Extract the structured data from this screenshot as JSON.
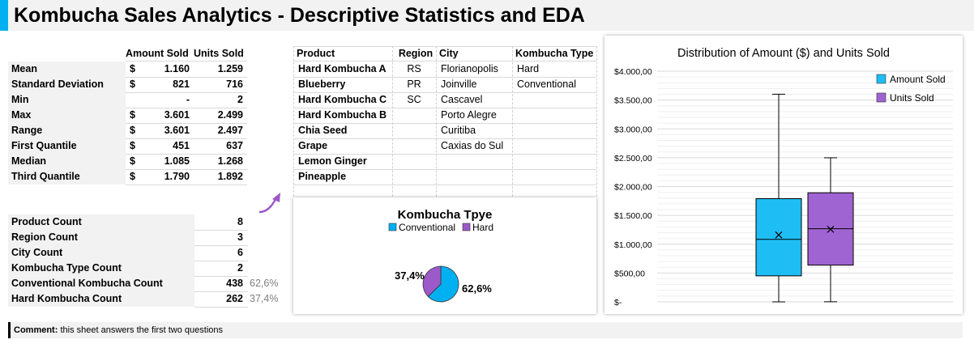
{
  "title": "Kombucha Sales Analytics - Descriptive Statistics and EDA",
  "stats_table": {
    "headers": [
      "Amount Sold",
      "Units Sold"
    ],
    "rows": [
      {
        "label": "Mean",
        "currency": "$",
        "amount": "1.160",
        "units": "1.259"
      },
      {
        "label": "Standard Deviation",
        "currency": "$",
        "amount": "821",
        "units": "716"
      },
      {
        "label": "Min",
        "currency": "",
        "amount": "-",
        "units": "2"
      },
      {
        "label": "Max",
        "currency": "$",
        "amount": "3.601",
        "units": "2.499"
      },
      {
        "label": "Range",
        "currency": "$",
        "amount": "3.601",
        "units": "2.497"
      },
      {
        "label": "First Quantile",
        "currency": "$",
        "amount": "451",
        "units": "637"
      },
      {
        "label": "Median",
        "currency": "$",
        "amount": "1.085",
        "units": "1.268"
      },
      {
        "label": "Third Quantile",
        "currency": "$",
        "amount": "1.790",
        "units": "1.892"
      }
    ]
  },
  "counts_table": {
    "rows": [
      {
        "label": "Product Count",
        "value": "8",
        "pct": ""
      },
      {
        "label": "Region Count",
        "value": "3",
        "pct": ""
      },
      {
        "label": "City Count",
        "value": "6",
        "pct": ""
      },
      {
        "label": "Kombucha Type Count",
        "value": "2",
        "pct": ""
      },
      {
        "label": "Conventional Kombucha Count",
        "value": "438",
        "pct": "62,6%"
      },
      {
        "label": "Hard Kombucha Count",
        "value": "262",
        "pct": "37,4%"
      }
    ]
  },
  "lookup_table": {
    "headers": [
      "Product",
      "Region",
      "City",
      "Kombucha Type"
    ],
    "products": [
      "Hard Kombucha A",
      "Blueberry",
      "Hard Kombucha C",
      "Hard Kombucha B",
      "Chia Seed",
      "Grape",
      "Lemon Ginger",
      "Pineapple"
    ],
    "regions": [
      "RS",
      "PR",
      "SC"
    ],
    "cities": [
      "Florianopolis",
      "Joinville",
      "Cascavel",
      "Porto Alegre",
      "Curitiba",
      "Caxias do Sul"
    ],
    "types": [
      "Hard",
      "Conventional"
    ]
  },
  "pie_chart_data": {
    "type": "pie",
    "title": "Kombucha Tpye",
    "legend_position": "top",
    "slices": [
      {
        "name": "Conventional",
        "value": 62.6,
        "label": "62,6%",
        "color": "#00b0f0"
      },
      {
        "name": "Hard",
        "value": 37.4,
        "label": "37,4%",
        "color": "#9b59c9"
      }
    ]
  },
  "chart_data": {
    "type": "box",
    "title": "Distribution of Amount ($) and Units Sold",
    "legend_position": "top-right",
    "grid": true,
    "ylim": [
      0,
      4000
    ],
    "yticks": [
      0,
      500,
      1000,
      1500,
      2000,
      2500,
      3000,
      3500,
      4000
    ],
    "ytick_labels": [
      "$-",
      "$500,00",
      "$1.000,00",
      "$1.500,00",
      "$2.000,00",
      "$2.500,00",
      "$3.000,00",
      "$3.500,00",
      "$4.000,00"
    ],
    "series": [
      {
        "name": "Amount Sold",
        "color": "#1ebef5",
        "min": 0,
        "q1": 451,
        "median": 1085,
        "q3": 1790,
        "max": 3601,
        "mean": 1160
      },
      {
        "name": "Units Sold",
        "color": "#a064d2",
        "min": 2,
        "q1": 637,
        "median": 1268,
        "q3": 1892,
        "max": 2499,
        "mean": 1259
      }
    ]
  },
  "comment": {
    "label": "Comment:",
    "text": "this sheet answers the first two questions"
  }
}
